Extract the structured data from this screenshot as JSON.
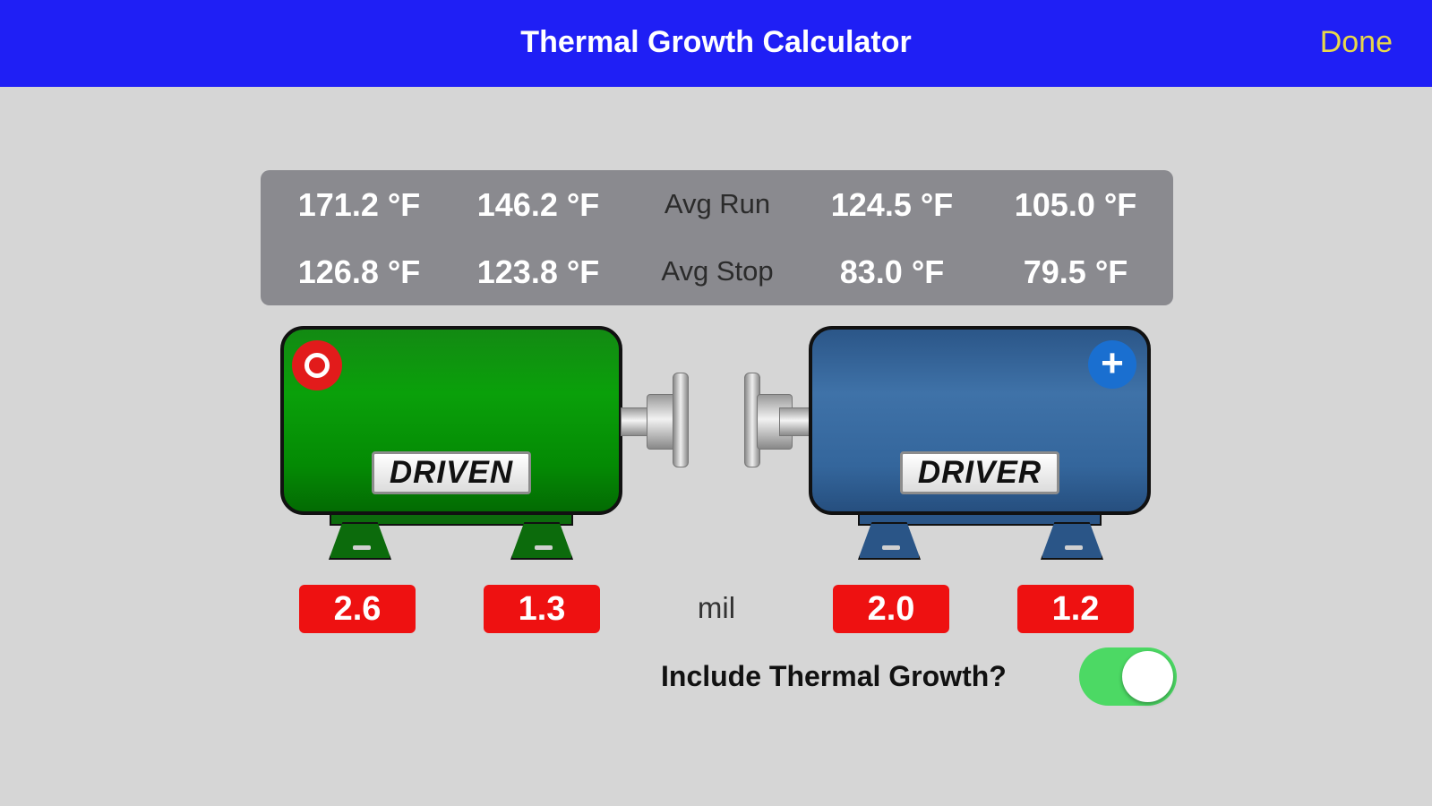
{
  "header": {
    "title": "Thermal Growth Calculator",
    "done_label": "Done"
  },
  "temperatures": {
    "run": [
      "171.2 °F",
      "146.2 °F",
      "124.5 °F",
      "105.0 °F"
    ],
    "stop": [
      "126.8 °F",
      "123.8 °F",
      "83.0 °F",
      "79.5 °F"
    ],
    "avg_run_label": "Avg Run",
    "avg_stop_label": "Avg Stop"
  },
  "machines": {
    "driven": {
      "label": "DRIVEN",
      "color": "#0aa00a",
      "icon": "target-icon"
    },
    "driver": {
      "label": "DRIVER",
      "color": "#3f72a8",
      "icon": "plus-icon"
    }
  },
  "growth": {
    "values": [
      "2.6",
      "1.3",
      "2.0",
      "1.2"
    ],
    "unit": "mil"
  },
  "thermal_toggle": {
    "label": "Include Thermal Growth?",
    "enabled": true
  }
}
